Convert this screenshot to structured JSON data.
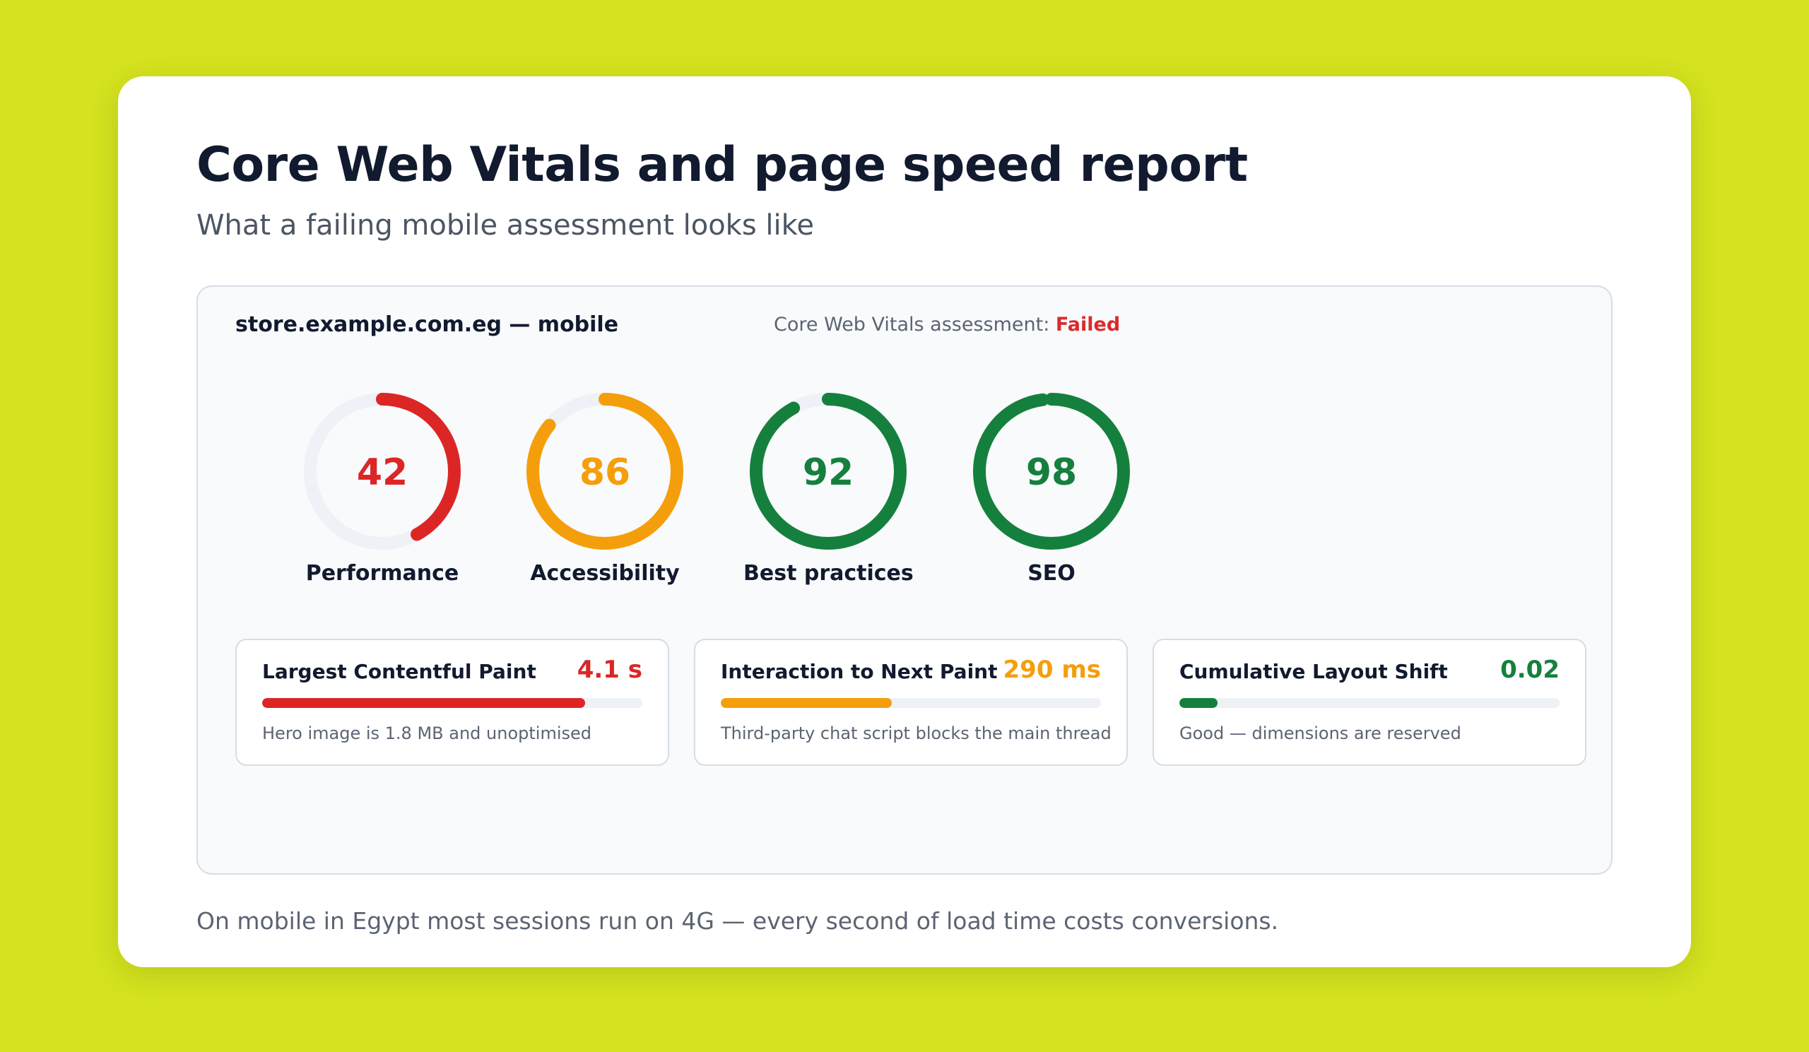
{
  "header": {
    "title": "Core Web Vitals and page speed report",
    "subtitle": "What a failing mobile assessment looks like"
  },
  "report": {
    "site": "store.example.com.eg — mobile",
    "assessment_label": "Core Web Vitals assessment:",
    "assessment_status": "Failed"
  },
  "gauges": [
    {
      "score": "42",
      "label": "Performance",
      "value": 0.42,
      "color": "#dc2626"
    },
    {
      "score": "86",
      "label": "Accessibility",
      "value": 0.86,
      "color": "#f59e0b"
    },
    {
      "score": "92",
      "label": "Best practices",
      "value": 0.92,
      "color": "#15803d"
    },
    {
      "score": "98",
      "label": "SEO",
      "value": 0.98,
      "color": "#15803d"
    }
  ],
  "metrics": [
    {
      "name": "Largest Contentful Paint",
      "value": "4.1 s",
      "fill": 0.85,
      "color": "#dc2626",
      "note": "Hero image is 1.8 MB and unoptimised"
    },
    {
      "name": "Interaction to Next Paint",
      "value": "290 ms",
      "fill": 0.45,
      "color": "#f59e0b",
      "note": "Third-party chat script blocks the main thread"
    },
    {
      "name": "Cumulative Layout Shift",
      "value": "0.02",
      "fill": 0.1,
      "color": "#15803d",
      "note": "Good — dimensions are reserved"
    }
  ],
  "footer": {
    "text": "On mobile in Egypt most sessions run on 4G — every second of load time costs conversions."
  },
  "colors": {
    "background": "#d4e21f",
    "fail": "#d92b2b",
    "track": "#eef1f5"
  }
}
